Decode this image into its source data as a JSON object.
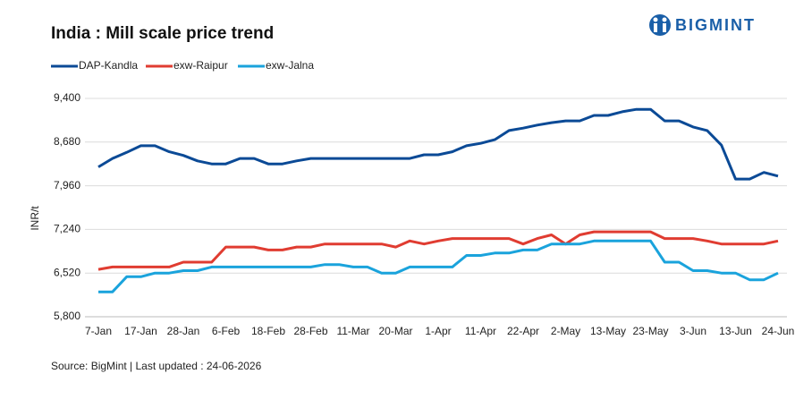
{
  "logo": "BIGMINT",
  "chart_data": {
    "type": "line",
    "title": "India : Mill scale price trend",
    "y_label": "INR/t",
    "source": "Source: BigMint | Last updated : 24-06-2026",
    "categories": [
      "7-Jan",
      null,
      null,
      "17-Jan",
      null,
      null,
      "28-Jan",
      null,
      null,
      "6-Feb",
      null,
      null,
      "18-Feb",
      null,
      null,
      "28-Feb",
      null,
      null,
      "11-Mar",
      null,
      null,
      "20-Mar",
      null,
      null,
      "1-Apr",
      null,
      null,
      "11-Apr",
      null,
      null,
      "22-Apr",
      null,
      null,
      "2-May",
      null,
      null,
      "13-May",
      null,
      null,
      "23-May",
      null,
      null,
      "3-Jun",
      null,
      null,
      "13-Jun",
      null,
      null,
      "24-Jun"
    ],
    "series": [
      {
        "name": "DAP-Kandla",
        "color": "#0b4a96",
        "values": [
          8270,
          8410,
          8510,
          8620,
          8620,
          8520,
          8460,
          8370,
          8320,
          8320,
          8410,
          8410,
          8320,
          8320,
          8370,
          8410,
          8410,
          8410,
          8410,
          8410,
          8410,
          8410,
          8410,
          8470,
          8470,
          8520,
          8620,
          8660,
          8720,
          8870,
          8910,
          8960,
          9000,
          9030,
          9030,
          9120,
          9120,
          9180,
          9220,
          9220,
          9030,
          9030,
          8930,
          8870,
          8630,
          8070,
          8070,
          8180,
          8120
        ]
      },
      {
        "name": "exw-Raipur",
        "color": "#e03c31",
        "values": [
          6580,
          6620,
          6620,
          6620,
          6620,
          6620,
          6700,
          6700,
          6700,
          6950,
          6950,
          6950,
          6900,
          6900,
          6950,
          6950,
          7000,
          7000,
          7000,
          7000,
          7000,
          6950,
          7050,
          7000,
          7050,
          7090,
          7090,
          7090,
          7090,
          7090,
          7000,
          7090,
          7150,
          7000,
          7150,
          7200,
          7200,
          7200,
          7200,
          7200,
          7090,
          7090,
          7090,
          7050,
          7000,
          7000,
          7000,
          7000,
          7050
        ]
      },
      {
        "name": "exw-Jalna",
        "color": "#1aa3dc",
        "values": [
          6210,
          6210,
          6460,
          6460,
          6520,
          6520,
          6560,
          6560,
          6620,
          6620,
          6620,
          6620,
          6620,
          6620,
          6620,
          6620,
          6660,
          6660,
          6620,
          6620,
          6520,
          6520,
          6620,
          6620,
          6620,
          6620,
          6810,
          6810,
          6850,
          6850,
          6900,
          6900,
          7000,
          7000,
          7000,
          7050,
          7050,
          7050,
          7050,
          7050,
          6700,
          6700,
          6560,
          6560,
          6520,
          6520,
          6410,
          6410,
          6520
        ]
      }
    ],
    "ylim": [
      5800,
      9400
    ],
    "yticks": [
      {
        "value": 5800,
        "label": "5,800"
      },
      {
        "value": 6520,
        "label": "6,520"
      },
      {
        "value": 7240,
        "label": "7,240"
      },
      {
        "value": 7960,
        "label": "7,960"
      },
      {
        "value": 8680,
        "label": "8,680"
      },
      {
        "value": 9400,
        "label": "9,400"
      }
    ],
    "grid": true
  }
}
